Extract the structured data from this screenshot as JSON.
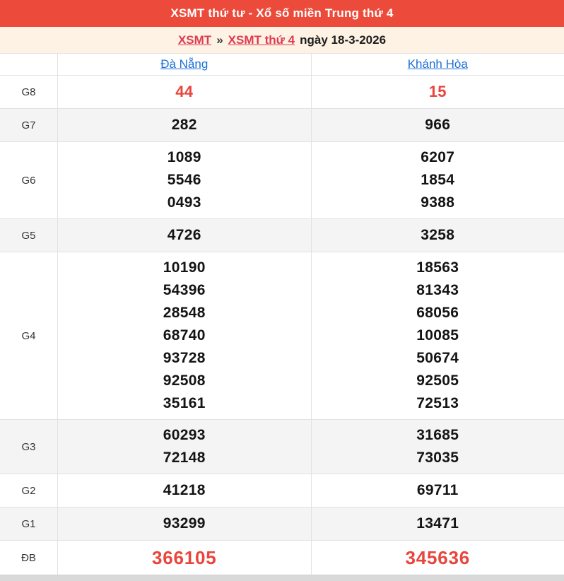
{
  "header": {
    "title": "XSMT thứ tư - Xổ số miền Trung thứ 4"
  },
  "breadcrumb": {
    "link_region": "XSMT",
    "separator": "»",
    "link_day": "XSMT thứ 4",
    "date_text": "ngày 18-3-2026"
  },
  "table": {
    "columns": [
      "Đà Nẵng",
      "Khánh Hòa"
    ],
    "rows": [
      {
        "label": "G8",
        "danang": [
          "44"
        ],
        "khanhhoa": [
          "15"
        ]
      },
      {
        "label": "G7",
        "danang": [
          "282"
        ],
        "khanhhoa": [
          "966"
        ]
      },
      {
        "label": "G6",
        "danang": [
          "1089",
          "5546",
          "0493"
        ],
        "khanhhoa": [
          "6207",
          "1854",
          "9388"
        ]
      },
      {
        "label": "G5",
        "danang": [
          "4726"
        ],
        "khanhhoa": [
          "3258"
        ]
      },
      {
        "label": "G4",
        "danang": [
          "10190",
          "54396",
          "28548",
          "68740",
          "93728",
          "92508",
          "35161"
        ],
        "khanhhoa": [
          "18563",
          "81343",
          "68056",
          "10085",
          "50674",
          "92505",
          "72513"
        ]
      },
      {
        "label": "G3",
        "danang": [
          "60293",
          "72148"
        ],
        "khanhhoa": [
          "31685",
          "73035"
        ]
      },
      {
        "label": "G2",
        "danang": [
          "41218"
        ],
        "khanhhoa": [
          "69711"
        ]
      },
      {
        "label": "G1",
        "danang": [
          "93299"
        ],
        "khanhhoa": [
          "13471"
        ]
      },
      {
        "label": "ĐB",
        "danang": [
          "366105"
        ],
        "khanhhoa": [
          "345636"
        ]
      }
    ]
  },
  "colors": {
    "title_bar_red": "#ec4b3b",
    "breadcrumb_bg_cream": "#fdf2e3",
    "breadcrumb_link_red": "#df3a51",
    "column_link_blue": "#1b6fd8",
    "highlight_value_red": "#e8453c",
    "alt_row_gray": "#f4f4f4",
    "border_gray": "#e2e2e2"
  }
}
